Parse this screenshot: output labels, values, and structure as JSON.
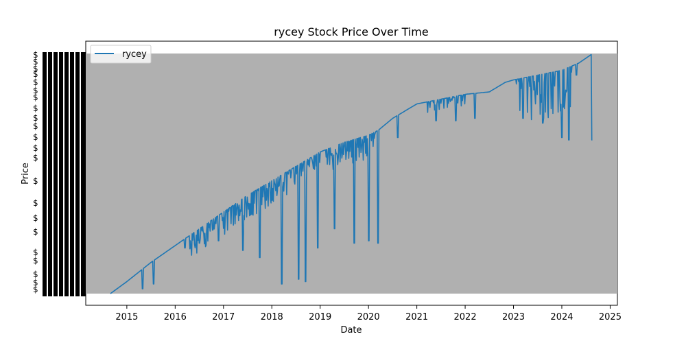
{
  "chart_data": {
    "type": "line",
    "title": "rycey Stock Price Over Time",
    "xlabel": "Date",
    "ylabel": "Price",
    "x_ticks": [
      "2015",
      "2016",
      "2017",
      "2018",
      "2019",
      "2020",
      "2021",
      "2022",
      "2023",
      "2024",
      "2025"
    ],
    "x_range": [
      2014.15,
      2025.15
    ],
    "y_range": [
      0,
      1
    ],
    "legend": {
      "position": "top-left",
      "entries": [
        "rycey"
      ]
    },
    "grid": false,
    "plot_background": "#b0b0b0",
    "series": [
      {
        "name": "rycey",
        "color": "#1f77b4",
        "trend": [
          [
            2014.66,
            0.0
          ],
          [
            2015.0,
            0.05
          ],
          [
            2015.5,
            0.13
          ],
          [
            2016.0,
            0.2
          ],
          [
            2016.5,
            0.27
          ],
          [
            2017.0,
            0.34
          ],
          [
            2017.5,
            0.41
          ],
          [
            2018.0,
            0.47
          ],
          [
            2018.5,
            0.53
          ],
          [
            2019.0,
            0.59
          ],
          [
            2019.5,
            0.63
          ],
          [
            2020.0,
            0.66
          ],
          [
            2020.2,
            0.68
          ],
          [
            2020.5,
            0.73
          ],
          [
            2021.0,
            0.79
          ],
          [
            2021.5,
            0.81
          ],
          [
            2022.0,
            0.83
          ],
          [
            2022.5,
            0.84
          ],
          [
            2022.83,
            0.88
          ],
          [
            2023.0,
            0.89
          ],
          [
            2023.5,
            0.91
          ],
          [
            2024.0,
            0.93
          ],
          [
            2024.35,
            0.96
          ],
          [
            2024.64,
            1.0
          ]
        ],
        "dips": [
          [
            2015.32,
            0.02
          ],
          [
            2015.55,
            0.04
          ],
          [
            2016.2,
            0.19
          ],
          [
            2016.5,
            0.21
          ],
          [
            2016.9,
            0.22
          ],
          [
            2017.4,
            0.18
          ],
          [
            2017.75,
            0.15
          ],
          [
            2018.2,
            0.04
          ],
          [
            2018.55,
            0.06
          ],
          [
            2018.7,
            0.05
          ],
          [
            2018.95,
            0.19
          ],
          [
            2019.3,
            0.27
          ],
          [
            2019.7,
            0.21
          ],
          [
            2020.0,
            0.22
          ],
          [
            2020.2,
            0.21
          ],
          [
            2020.6,
            0.65
          ],
          [
            2021.4,
            0.72
          ],
          [
            2021.8,
            0.72
          ],
          [
            2022.2,
            0.73
          ],
          [
            2023.2,
            0.73
          ],
          [
            2023.6,
            0.71
          ],
          [
            2024.0,
            0.65
          ],
          [
            2024.15,
            0.64
          ],
          [
            2024.3,
            0.91
          ],
          [
            2024.62,
            0.64
          ]
        ]
      }
    ]
  }
}
